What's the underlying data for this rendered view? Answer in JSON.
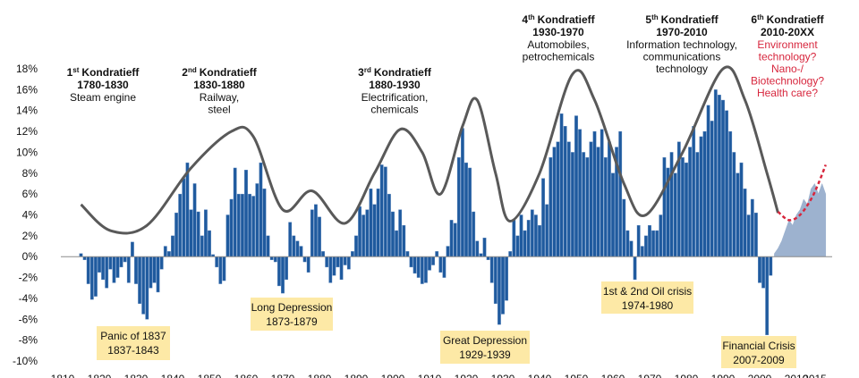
{
  "chart_data": {
    "type": "bar",
    "x": [
      1815,
      1816,
      1817,
      1818,
      1819,
      1820,
      1821,
      1822,
      1823,
      1824,
      1825,
      1826,
      1827,
      1828,
      1829,
      1830,
      1831,
      1832,
      1833,
      1834,
      1835,
      1836,
      1837,
      1838,
      1839,
      1840,
      1841,
      1842,
      1843,
      1844,
      1845,
      1846,
      1847,
      1848,
      1849,
      1850,
      1851,
      1852,
      1853,
      1854,
      1855,
      1856,
      1857,
      1858,
      1859,
      1860,
      1861,
      1862,
      1863,
      1864,
      1865,
      1866,
      1867,
      1868,
      1869,
      1870,
      1871,
      1872,
      1873,
      1874,
      1875,
      1876,
      1877,
      1878,
      1879,
      1880,
      1881,
      1882,
      1883,
      1884,
      1885,
      1886,
      1887,
      1888,
      1889,
      1890,
      1891,
      1892,
      1893,
      1894,
      1895,
      1896,
      1897,
      1898,
      1899,
      1900,
      1901,
      1902,
      1903,
      1904,
      1905,
      1906,
      1907,
      1908,
      1909,
      1910,
      1911,
      1912,
      1913,
      1914,
      1915,
      1916,
      1917,
      1918,
      1919,
      1920,
      1921,
      1922,
      1923,
      1924,
      1925,
      1926,
      1927,
      1928,
      1929,
      1930,
      1931,
      1932,
      1933,
      1934,
      1935,
      1936,
      1937,
      1938,
      1939,
      1940,
      1941,
      1942,
      1943,
      1944,
      1945,
      1946,
      1947,
      1948,
      1949,
      1950,
      1951,
      1952,
      1953,
      1954,
      1955,
      1956,
      1957,
      1958,
      1959,
      1960,
      1961,
      1962,
      1963,
      1964,
      1965,
      1966,
      1967,
      1968,
      1969,
      1970,
      1971,
      1972,
      1973,
      1974,
      1975,
      1976,
      1977,
      1978,
      1979,
      1980,
      1981,
      1982,
      1983,
      1984,
      1985,
      1986,
      1987,
      1988,
      1989,
      1990,
      1991,
      1992,
      1993,
      1994,
      1995,
      1996,
      1997,
      1998,
      1999,
      2000,
      2001,
      2002,
      2003
    ],
    "values": [
      0.3,
      -0.3,
      -2.6,
      -4.1,
      -3.8,
      -1.5,
      -2.2,
      -3.0,
      -1.2,
      -2.5,
      -2.0,
      -1.0,
      -0.5,
      -2.5,
      1.4,
      -2.6,
      -4.5,
      -5.5,
      -6.0,
      -3.0,
      -2.5,
      -3.4,
      -1.2,
      1.0,
      0.5,
      2.0,
      4.2,
      6.0,
      7.5,
      9.0,
      4.5,
      7.0,
      4.3,
      2.0,
      4.5,
      2.5,
      0.2,
      -1.0,
      -2.6,
      -2.3,
      4.0,
      5.5,
      8.5,
      6.0,
      6.0,
      8.3,
      6.0,
      5.8,
      7.0,
      9.0,
      6.5,
      2.0,
      -0.3,
      -0.5,
      -2.8,
      -3.5,
      -2.2,
      3.3,
      2.0,
      1.5,
      1.0,
      -0.5,
      -1.5,
      4.5,
      5.0,
      3.8,
      0.5,
      -1.0,
      -2.5,
      -1.8,
      -1.0,
      -2.2,
      -0.8,
      -1.2,
      0.5,
      2.0,
      4.8,
      4.0,
      4.5,
      6.5,
      5.0,
      6.5,
      8.8,
      8.6,
      6.0,
      4.3,
      2.5,
      4.5,
      3.0,
      0.5,
      -1.0,
      -1.6,
      -2.0,
      -2.6,
      -2.5,
      -1.3,
      -0.8,
      0.5,
      -1.5,
      -2.0,
      1.0,
      3.5,
      3.2,
      9.5,
      12.3,
      9.0,
      8.5,
      4.3,
      1.5,
      0.3,
      1.8,
      -0.3,
      -2.5,
      -4.5,
      -6.5,
      -5.5,
      -4.2,
      0.5,
      3.5,
      2.0,
      4.0,
      2.5,
      3.5,
      4.5,
      4.0,
      3.0,
      7.5,
      5.0,
      9.5,
      10.5,
      11.0,
      13.7,
      12.5,
      11.0,
      10.0,
      13.5,
      12.2,
      10.0,
      9.5,
      11.0,
      12.0,
      10.5,
      12.2,
      9.5,
      11.0,
      8.0,
      10.5,
      12.0,
      5.5,
      2.5,
      1.5,
      -2.2,
      3.0,
      1.0,
      2.0,
      3.0,
      2.5,
      2.5,
      4.0,
      9.5,
      8.5,
      10.0,
      8.0,
      11.0,
      9.5,
      9.0,
      10.5,
      12.5,
      10.0,
      11.5,
      12.0,
      14.5,
      13.0,
      16.0,
      15.5,
      15.0,
      14.0,
      12.0,
      10.0,
      8.0,
      9.0,
      6.5,
      4.0,
      5.5,
      4.2,
      -2.5,
      -3.0,
      -7.5,
      -1.8
    ],
    "color": "#1f5a9e",
    "forecast": {
      "x": [
        2004,
        2005,
        2006,
        2007,
        2008,
        2009,
        2010,
        2011,
        2012,
        2013,
        2014,
        2015,
        2016,
        2017,
        2018
      ],
      "values": [
        0.3,
        0.8,
        1.5,
        2.5,
        3.5,
        3.0,
        4.0,
        4.5,
        5.5,
        5.0,
        6.5,
        7.0,
        6.0,
        7.0,
        6.0
      ],
      "color": "#9db2cf"
    },
    "lines": [
      {
        "x": [
          1815,
          1823,
          1833,
          1845,
          1856,
          1862,
          1870,
          1878,
          1887,
          1895,
          1902,
          1908,
          1913,
          1919,
          1923,
          1928,
          1932,
          1940,
          1949,
          1955,
          1963,
          1969,
          1979,
          1990,
          1996,
          2002,
          2005
        ],
        "values": [
          5.0,
          2.5,
          3.0,
          8.5,
          12.0,
          11.5,
          4.5,
          6.3,
          3.2,
          8.0,
          12.2,
          10.0,
          6.0,
          12.5,
          15.0,
          8.0,
          3.4,
          8.0,
          17.5,
          15.0,
          7.0,
          4.0,
          10.0,
          18.0,
          15.0,
          8.0,
          4.2
        ],
        "color": "#595959",
        "dashed": false
      },
      {
        "x": [
          2005,
          2008,
          2011,
          2014,
          2016,
          2018
        ],
        "values": [
          4.3,
          3.5,
          4.0,
          5.5,
          7.0,
          8.8
        ],
        "color": "#d7263d",
        "dashed": true
      }
    ],
    "xlim": [
      1805,
      2025
    ],
    "xticks": [
      1810,
      1820,
      1830,
      1840,
      1850,
      1860,
      1870,
      1880,
      1890,
      1900,
      1910,
      1920,
      1930,
      1940,
      1950,
      1960,
      1970,
      1980,
      1990,
      2000,
      2010,
      2015
    ],
    "ylim": [
      -10,
      18
    ],
    "yticks": [
      {
        "value": -10,
        "label": "-10%"
      },
      {
        "value": -8,
        "label": "-8%"
      },
      {
        "value": -6,
        "label": "-6%"
      },
      {
        "value": -4,
        "label": "-4%"
      },
      {
        "value": -2,
        "label": "-2%"
      },
      {
        "value": 0,
        "label": "0%"
      },
      {
        "value": 2,
        "label": "2%"
      },
      {
        "value": 4,
        "label": "4%"
      },
      {
        "value": 6,
        "label": "6%"
      },
      {
        "value": 8,
        "label": "8%"
      },
      {
        "value": 10,
        "label": "10%"
      },
      {
        "value": 12,
        "label": "12%"
      },
      {
        "value": 14,
        "label": "14%"
      },
      {
        "value": 16,
        "label": "16%"
      },
      {
        "value": 18,
        "label": "18%"
      }
    ],
    "grid": false,
    "waves": [
      {
        "number": "1",
        "suffix": "st",
        "name": "Kondratieff",
        "period": "1780-1830",
        "desc": [
          "Steam engine"
        ],
        "desc_color": "#111111"
      },
      {
        "number": "2",
        "suffix": "nd",
        "name": "Kondratieff",
        "period": "1830-1880",
        "desc": [
          "Railway,",
          "steel"
        ],
        "desc_color": "#111111"
      },
      {
        "number": "3",
        "suffix": "rd",
        "name": "Kondratieff",
        "period": "1880-1930",
        "desc": [
          "Electrification,",
          "chemicals"
        ],
        "desc_color": "#111111"
      },
      {
        "number": "4",
        "suffix": "th",
        "name": "Kondratieff",
        "period": "1930-1970",
        "desc": [
          "Automobiles,",
          "petrochemicals"
        ],
        "desc_color": "#111111"
      },
      {
        "number": "5",
        "suffix": "th",
        "name": "Kondratieff",
        "period": "1970-2010",
        "desc": [
          "Information technology,",
          "communications",
          "technology"
        ],
        "desc_color": "#111111"
      },
      {
        "number": "6",
        "suffix": "th",
        "name": "Kondratieff",
        "period": "2010-20XX",
        "desc": [
          "Environment",
          "technology?",
          "Nano-/",
          "Biotechnology?",
          "Health care?"
        ],
        "desc_color": "#d7263d"
      }
    ],
    "crises": [
      {
        "name": "Panic of 1837",
        "period": "1837-1843"
      },
      {
        "name": "Long Depression",
        "period": "1873-1879"
      },
      {
        "name": "Great Depression",
        "period": "1929-1939"
      },
      {
        "name": "1st & 2nd Oil crisis",
        "period": "1974-1980"
      },
      {
        "name": "Financial Crisis",
        "period": "2007-2009"
      }
    ],
    "crisis_color": "#fde9a6"
  }
}
